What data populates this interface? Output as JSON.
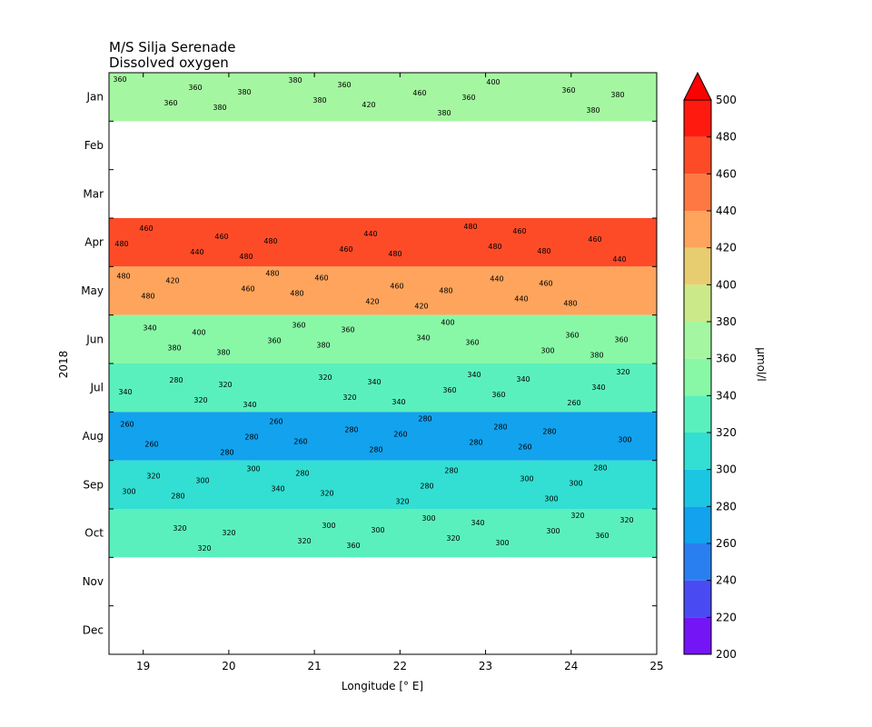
{
  "chart_data": {
    "type": "heatmap",
    "title": "M/S Silja Serenade",
    "subtitle": "Dissolved oxygen",
    "xlabel": "Longitude [° E]",
    "ylabel": "2018",
    "colorbar_label": "µmol/l",
    "xlim": [
      18.6,
      25.0
    ],
    "x_ticks": [
      "19",
      "20",
      "21",
      "22",
      "23",
      "24",
      "25"
    ],
    "y_ticks": [
      "Jan",
      "Feb",
      "Mar",
      "Apr",
      "May",
      "Jun",
      "Jul",
      "Aug",
      "Sep",
      "Oct",
      "Nov",
      "Dec"
    ],
    "colorbar_ticks": [
      "200",
      "220",
      "240",
      "260",
      "280",
      "300",
      "320",
      "340",
      "360",
      "380",
      "400",
      "420",
      "440",
      "460",
      "480",
      "500"
    ],
    "color_levels": [
      200,
      220,
      240,
      260,
      280,
      300,
      320,
      340,
      360,
      380,
      400,
      420,
      440,
      460,
      480,
      500
    ],
    "colors": [
      "#7415f5",
      "#4a4af3",
      "#2a7ff0",
      "#12a2ee",
      "#1ac6e2",
      "#32dfd2",
      "#5af0bd",
      "#88f8a6",
      "#a4f7a0",
      "#cbe988",
      "#e8cc70",
      "#fea45c",
      "#fe7843",
      "#fd4b28",
      "#ff1a0f",
      "#ff0000"
    ],
    "data_gap_months": [
      "Feb",
      "Mar",
      "Nov",
      "Dec"
    ],
    "bands": [
      {
        "month": "Jan",
        "value": 370
      },
      {
        "month": "Apr",
        "value": 470
      },
      {
        "month": "May",
        "value": 430
      },
      {
        "month": "Jun",
        "value": 350
      },
      {
        "month": "Jul",
        "value": 320
      },
      {
        "month": "Aug",
        "value": 270
      },
      {
        "month": "Sep",
        "value": 300
      },
      {
        "month": "Oct",
        "value": 325
      }
    ],
    "contour_labels": [
      "360",
      "380",
      "420",
      "400",
      "380",
      "380",
      "360",
      "360",
      "380",
      "360",
      "380",
      "380",
      "360",
      "360",
      "380",
      "460",
      "480",
      "460",
      "480",
      "480",
      "460",
      "480",
      "480",
      "440",
      "480",
      "440",
      "460",
      "460",
      "480",
      "460",
      "440",
      "460",
      "480",
      "480",
      "420",
      "480",
      "420",
      "460",
      "480",
      "480",
      "460",
      "440",
      "480",
      "460",
      "420",
      "440",
      "360",
      "380",
      "360",
      "360",
      "380",
      "400",
      "380",
      "400",
      "360",
      "380",
      "360",
      "340",
      "300",
      "340",
      "360",
      "340",
      "340",
      "340",
      "340",
      "340",
      "360",
      "320",
      "320",
      "320",
      "340",
      "340",
      "320",
      "320",
      "360",
      "260",
      "280",
      "260",
      "280",
      "280",
      "260",
      "260",
      "260",
      "260",
      "260",
      "280",
      "280",
      "280",
      "300",
      "280",
      "280",
      "280",
      "280",
      "300",
      "320",
      "280",
      "300",
      "280",
      "280",
      "280",
      "300",
      "320",
      "340",
      "320",
      "300",
      "300",
      "300",
      "300",
      "300",
      "320",
      "320",
      "360",
      "340",
      "360",
      "320",
      "300",
      "320",
      "320",
      "320",
      "320",
      "300",
      "300"
    ]
  }
}
